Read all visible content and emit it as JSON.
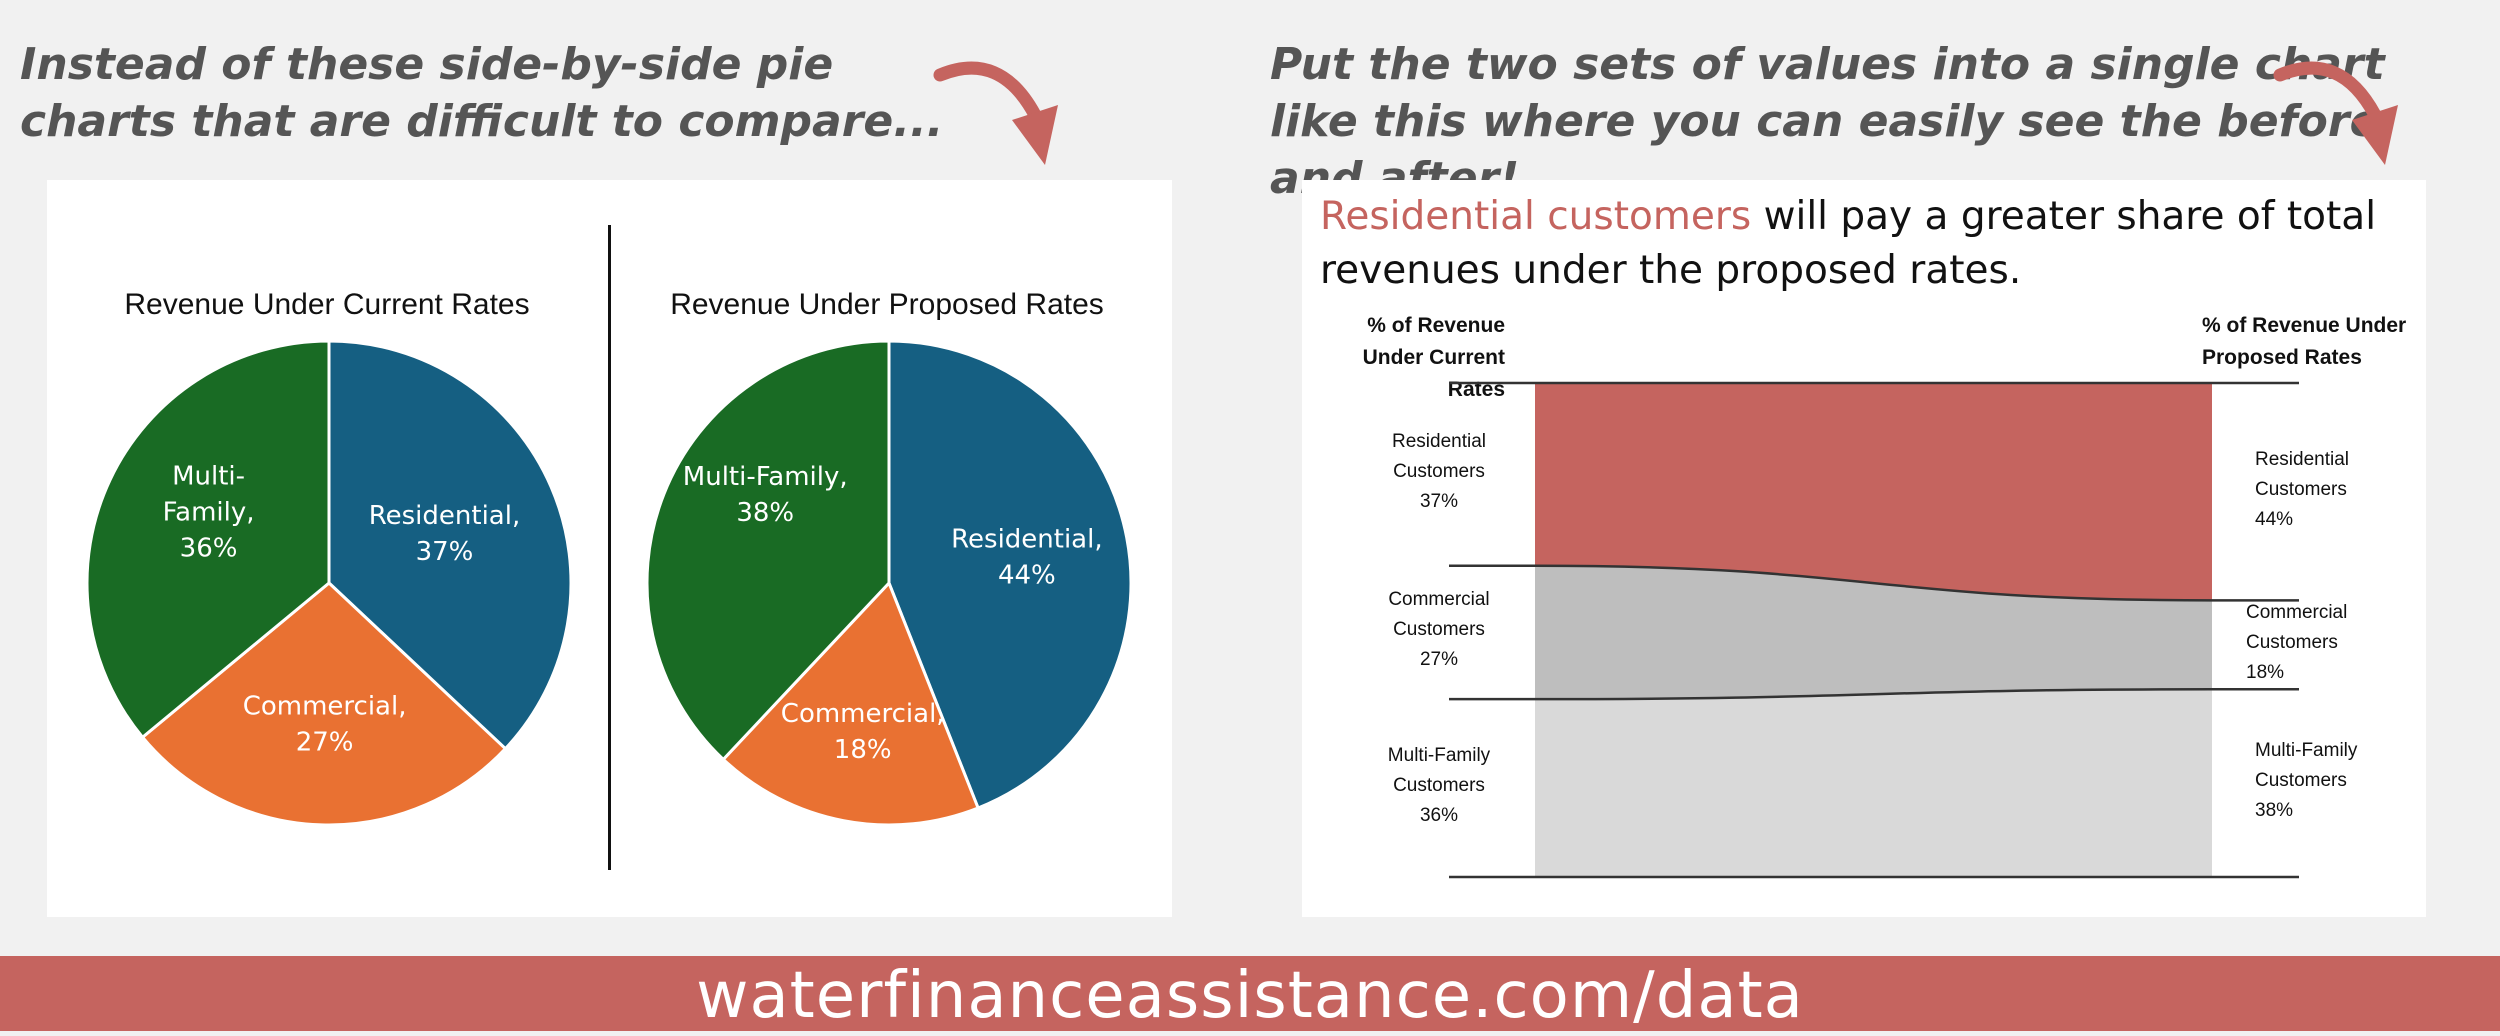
{
  "captions": {
    "left": "Instead of these side-by-side pie charts that are difficult to compare...",
    "right": "Put the two sets of values into a single chart like this where you can easily see the before and after!"
  },
  "colors": {
    "residential_pie": "#155f82",
    "commercial_pie": "#e97132",
    "multifamily_pie": "#196b24",
    "residential_slope": "#c5645f",
    "commercial_slope": "#bebebe",
    "multifamily_slope": "#d9d9d9",
    "accent": "#c5645f"
  },
  "headline": {
    "highlight": "Residential customers",
    "rest": " will pay a greater share of total revenues under the proposed rates."
  },
  "footer": {
    "url": "waterfinanceassistance.com/data"
  },
  "chart_data": [
    {
      "type": "pie",
      "title": "Revenue Under Current Rates",
      "slices": [
        {
          "label_name": "Residential,",
          "label_value": "37%",
          "value": 37
        },
        {
          "label_name": "Commercial,",
          "label_value": "27%",
          "value": 27
        },
        {
          "label_name": "Multi-Family,",
          "label_value": "36%",
          "value": 36
        }
      ]
    },
    {
      "type": "pie",
      "title": "Revenue Under Proposed Rates",
      "slices": [
        {
          "label_name": "Residential,",
          "label_value": "44%",
          "value": 44
        },
        {
          "label_name": "Commercial,",
          "label_value": "18%",
          "value": 18
        },
        {
          "label_name": "Multi-Family,",
          "label_value": "38%",
          "value": 38
        }
      ]
    },
    {
      "type": "area",
      "title": "Residential customers will pay a greater share of total revenues under the proposed rates.",
      "xlabel_left": "% of Revenue Under Current Rates",
      "xlabel_right": "% of Revenue Under Proposed Rates",
      "series": [
        {
          "name": "Residential Customers",
          "current": 37,
          "proposed": 44,
          "current_label": "37%",
          "proposed_label": "44%"
        },
        {
          "name": "Commercial Customers",
          "current": 27,
          "proposed": 18,
          "current_label": "27%",
          "proposed_label": "18%"
        },
        {
          "name": "Multi-Family Customers",
          "current": 36,
          "proposed": 38,
          "current_label": "36%",
          "proposed_label": "38%"
        }
      ]
    }
  ]
}
